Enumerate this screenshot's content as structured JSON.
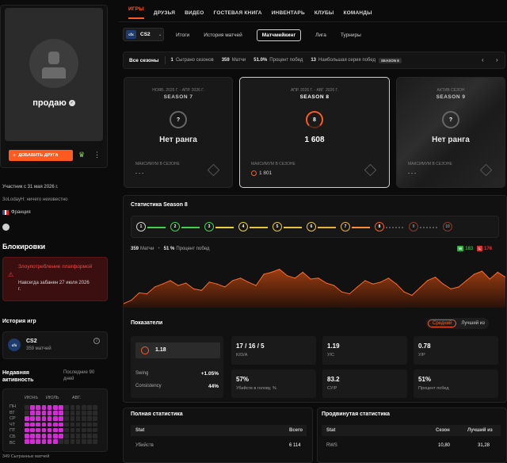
{
  "nav": {
    "tabs": [
      "ИГРЫ",
      "ДРУЗЬЯ",
      "ВИДЕО",
      "ГОСТЕВАЯ КНИГА",
      "ИНВЕНТАРЬ",
      "КЛУБЫ",
      "КОМАНДЫ"
    ]
  },
  "game": {
    "short": "cfx",
    "name": "CS2"
  },
  "subtabs": [
    "Итоги",
    "История матчей",
    "Матчмейкинг",
    "Лига",
    "Турниры"
  ],
  "summary": {
    "label": "Все сезоны",
    "s1v": "1",
    "s1l": "Сыграно сезонов",
    "s2v": "359",
    "s2l": "Матчи",
    "s3v": "51.0%",
    "s3l": "Процент побед",
    "s4v": "13",
    "s4l": "Наибольшая серия побед",
    "badge": "SEASON 8"
  },
  "seasons": [
    {
      "period": "НОЯБ. 2025 Г. - АПР. 2026 Г.",
      "name": "SEASON 7",
      "ring": "?",
      "rank": "Нет ранга",
      "max_label": "МАКСИМУМ В СЕЗОНЕ",
      "max_value": "- - -"
    },
    {
      "period": "АПР. 2026 Г. - АВГ. 2026 Г.",
      "name": "SEASON 8",
      "ring": "8",
      "rank": "1 608",
      "max_label": "МАКСИМУМ В СЕЗОНЕ",
      "max_value": "1 801"
    },
    {
      "period": "АКТИВ СЕЗОН",
      "name": "SEASON 9",
      "ring": "?",
      "rank": "Нет ранга",
      "max_label": "МАКСИМУМ В СЕЗОНЕ",
      "max_value": "- - -"
    }
  ],
  "stats_title": "Статистика Season 8",
  "ranks": [
    "1",
    "2",
    "3",
    "4",
    "5",
    "6",
    "7",
    "8",
    "9",
    "10"
  ],
  "chart_data": {
    "type": "area",
    "title": "",
    "xlabel": "",
    "ylabel": "",
    "series": [
      {
        "values": [
          0.08,
          0.15,
          0.3,
          0.28,
          0.42,
          0.48,
          0.55,
          0.45,
          0.5,
          0.38,
          0.35,
          0.52,
          0.48,
          0.42,
          0.55,
          0.6,
          0.52,
          0.45,
          0.68,
          0.72,
          0.78,
          0.65,
          0.6,
          0.72,
          0.58,
          0.6,
          0.5,
          0.45,
          0.32,
          0.28,
          0.42,
          0.55,
          0.48,
          0.52,
          0.6,
          0.48,
          0.32,
          0.25,
          0.4,
          0.55,
          0.62,
          0.48,
          0.38,
          0.42,
          0.55,
          0.68,
          0.74,
          0.58,
          0.72,
          0.62
        ]
      }
    ]
  },
  "matches": {
    "count": "359",
    "count_label": "Матчи",
    "wr": "51 %",
    "wr_label": "Процент побед",
    "w_badge": "W",
    "w": "183",
    "l_badge": "L",
    "l": "176"
  },
  "indicators": {
    "title": "Показатели",
    "opt1": "Средний",
    "opt2": "Лучший из"
  },
  "rating": {
    "value": "1.18",
    "swing_label": "Swing",
    "swing": "+1.05%",
    "cons_label": "Consistency",
    "cons": "44%"
  },
  "kda": {
    "value": "17 / 16 / 5",
    "label": "K/D/A"
  },
  "kd": {
    "value": "1.19",
    "label": "У/С"
  },
  "kr": {
    "value": "0.78",
    "label": "У/Р"
  },
  "hs": {
    "value": "57%",
    "label": "Убийств в голову, %"
  },
  "adr": {
    "value": "83.2",
    "label": "СУ/Р"
  },
  "win": {
    "value": "51%",
    "label": "Процент побед"
  },
  "full_stats": {
    "title": "Полная статистика",
    "h1": "Stat",
    "h2": "Всего",
    "r1": "Убийств",
    "r1v": "6 114"
  },
  "adv_stats": {
    "title": "Продвинутая статистика",
    "h1": "Stat",
    "h2": "Сезон",
    "h3": "Лучший из",
    "r1": "RWS",
    "r1v": "10,80",
    "r1b": "31,28"
  },
  "profile": {
    "name": "продаю",
    "add_friend": "ДОБАВИТЬ ДРУГА",
    "member": "Участник с 31 мая 2026 г.",
    "about": "3oLodayH: ничего неизвестно",
    "country": "Франция"
  },
  "bans": {
    "title": "Блокировки",
    "ban_title": "Злоупотребление платформой",
    "ban_text": "Навсегда забанен 27 июля 2026 г."
  },
  "history": {
    "title": "История игр",
    "game": "CS2",
    "matches": "359 матчей"
  },
  "activity": {
    "title": "Недавняя активность",
    "period": "Последние 90 дней",
    "months": [
      "ИЮНЬ",
      "ИЮЛЬ",
      "АВГ."
    ],
    "days": [
      "ПН",
      "ВТ",
      "СР",
      "ЧТ",
      "ПТ",
      "СБ",
      "ВС"
    ],
    "footer": "349 Сыгранных матчей"
  },
  "colors": {
    "accent": "#ff5a1f",
    "active_card_border": "#cfcfcf",
    "heatmap": "#d62ad8",
    "win": "#27b53b",
    "loss": "#e23232"
  }
}
